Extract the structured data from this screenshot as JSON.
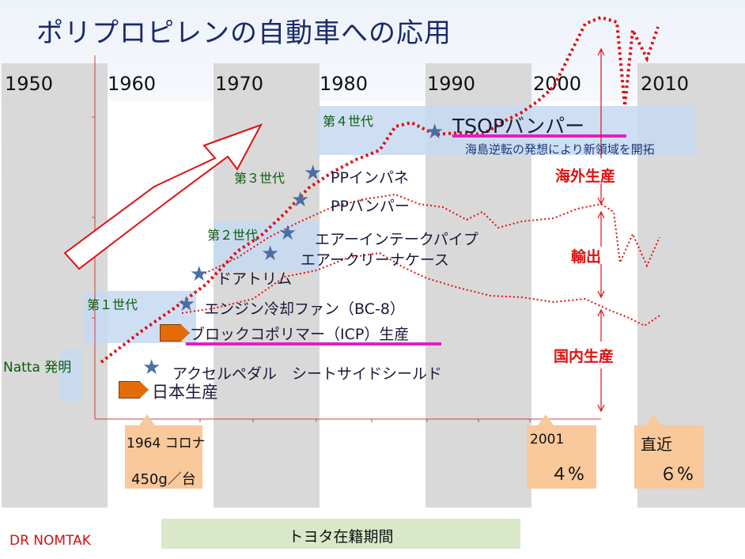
{
  "title": "ポリプロピレンの自動車への応用",
  "years": [
    "1950",
    "1960",
    "1970",
    "1980",
    "1990",
    "2000",
    "2010"
  ],
  "generations": {
    "g1": "第１世代",
    "g2": "第２世代",
    "g3": "第３世代",
    "g4": "第４世代"
  },
  "natta": "Natta 発明",
  "items": {
    "pedal": "アクセルペダル　シートサイドシールド",
    "nihon": "日本生産",
    "block": "ブロックコポリマー（ICP）生産",
    "engine": "エンジン冷却ファン（BC-8）",
    "door": "ドアトリム",
    "aircleaner": "エアークリーナケース",
    "airintake": "エアーインテークパイプ",
    "ppbumper": "PPバンパー",
    "ppinpane": "PPインパネ",
    "tsop": "TSOPバンパー",
    "tsop_sub": "海島逆転の発想により新領域を開拓"
  },
  "right_labels": {
    "overseas": "海外生産",
    "export": "輸出",
    "domestic": "国内生産"
  },
  "boxes": {
    "corona_line1": "1964 コロナ",
    "corona_line2": "450g／台",
    "y2001": "2001",
    "p2001": "４%",
    "recent": "直近",
    "precent": "６%"
  },
  "toyota": "トヨタ在籍期間",
  "author": "DR NOMTAK",
  "colors": {
    "red": "#e01010",
    "magenta": "#e020c0",
    "blue_band": "#c5d9f1",
    "orange": "#e36c0a"
  }
}
